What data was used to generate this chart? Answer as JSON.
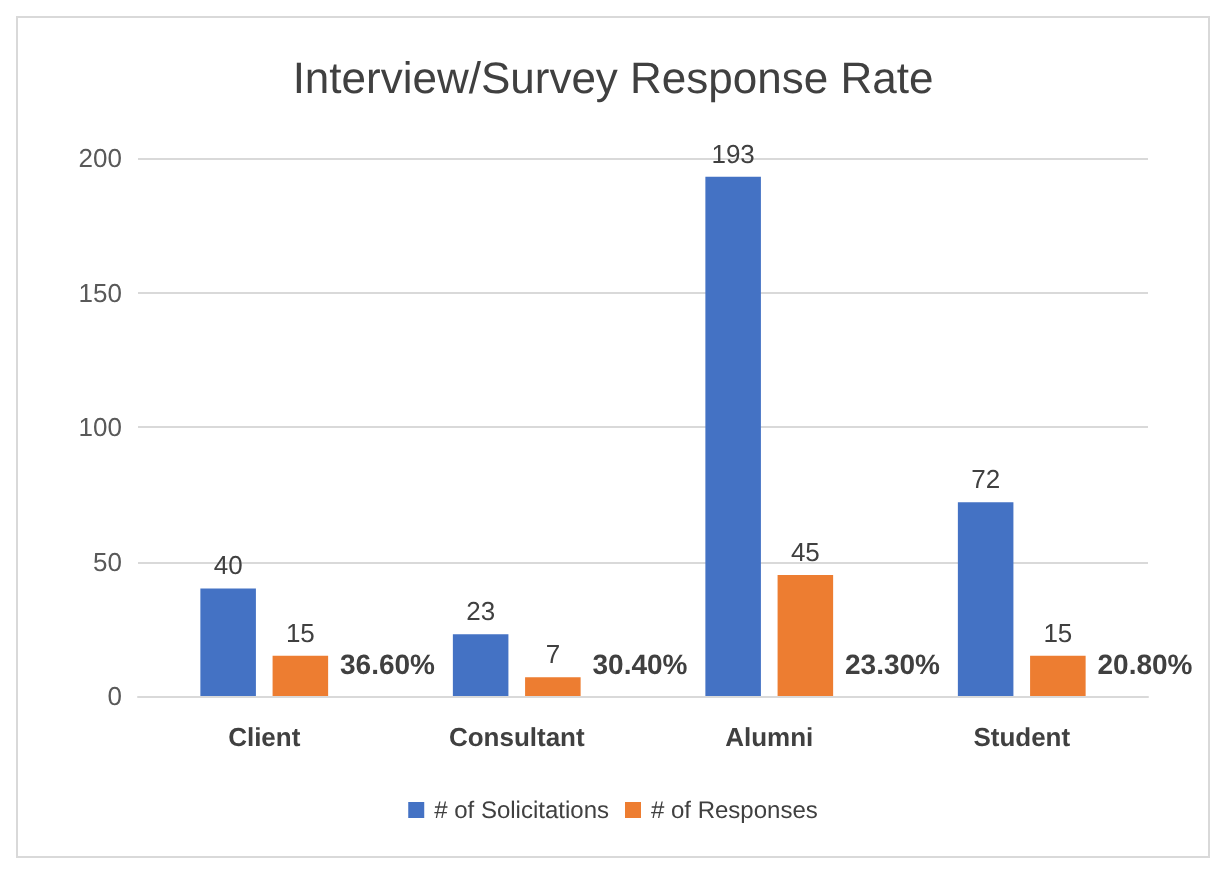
{
  "chart_data": {
    "type": "bar",
    "title": "Interview/Survey Response Rate",
    "categories": [
      "Client",
      "Consultant",
      "Alumni",
      "Student"
    ],
    "series": [
      {
        "name": "# of Solicitations",
        "color": "#4472c4",
        "values": [
          40,
          23,
          193,
          72
        ]
      },
      {
        "name": "# of Responses",
        "color": "#ed7d31",
        "values": [
          15,
          7,
          45,
          15
        ]
      }
    ],
    "ylim": [
      0,
      200
    ],
    "yticks": [
      0,
      50,
      100,
      150,
      200
    ],
    "grid": "y",
    "legend": "bottom",
    "data_labels": true,
    "annotations": [
      {
        "text": "36.60%",
        "x": "Client",
        "y": 12
      },
      {
        "text": "30.40%",
        "x": "Consultant",
        "y": 12
      },
      {
        "text": "23.30%",
        "x": "Alumni",
        "y": 12
      },
      {
        "text": "20.80%",
        "x": "Student",
        "y": 12
      }
    ]
  }
}
